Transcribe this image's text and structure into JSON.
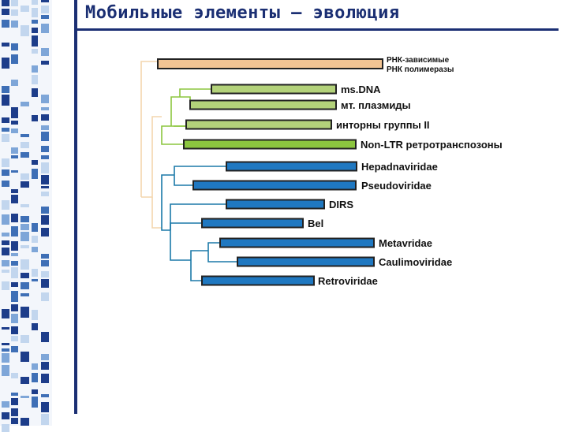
{
  "header": {
    "title": "Мобильные элементы – эволюция"
  },
  "colors": {
    "rna": "#f2c493",
    "rna_line": "#f4d6ad",
    "green_light": "#b3d27a",
    "green_dark": "#8cc63f",
    "green_line": "#8cc63f",
    "blue": "#1f78c1",
    "blue_line": "#1b79a8",
    "border_navy": "#1b2f73"
  },
  "tree": {
    "leaves": [
      {
        "id": "rdrp",
        "label_lines": [
          "РНК-зависимые",
          "РНК полимеразы"
        ],
        "group": "rna"
      },
      {
        "id": "msdna",
        "label_lines": [
          "ms.DNA"
        ],
        "group": "green_light"
      },
      {
        "id": "mt-plasmids",
        "label_lines": [
          "мт. плазмиды"
        ],
        "group": "green_light"
      },
      {
        "id": "group-ii-introns",
        "label_lines": [
          "инторны группы II"
        ],
        "group": "green_light"
      },
      {
        "id": "non-ltr",
        "label_lines": [
          "Non-LTR ретротранспозоны"
        ],
        "group": "green_dark"
      },
      {
        "id": "hepadnaviridae",
        "label_lines": [
          "Hepadnaviridae"
        ],
        "group": "blue"
      },
      {
        "id": "pseudoviridae",
        "label_lines": [
          "Pseudoviridae"
        ],
        "group": "blue"
      },
      {
        "id": "dirs",
        "label_lines": [
          "DIRS"
        ],
        "group": "blue"
      },
      {
        "id": "bel",
        "label_lines": [
          "Bel"
        ],
        "group": "blue"
      },
      {
        "id": "metaviridae",
        "label_lines": [
          "Metavridae"
        ],
        "group": "blue"
      },
      {
        "id": "caulimoviridae",
        "label_lines": [
          "Caulimoviridae"
        ],
        "group": "blue"
      },
      {
        "id": "retroviridae",
        "label_lines": [
          "Retroviridae"
        ],
        "group": "blue"
      }
    ]
  }
}
